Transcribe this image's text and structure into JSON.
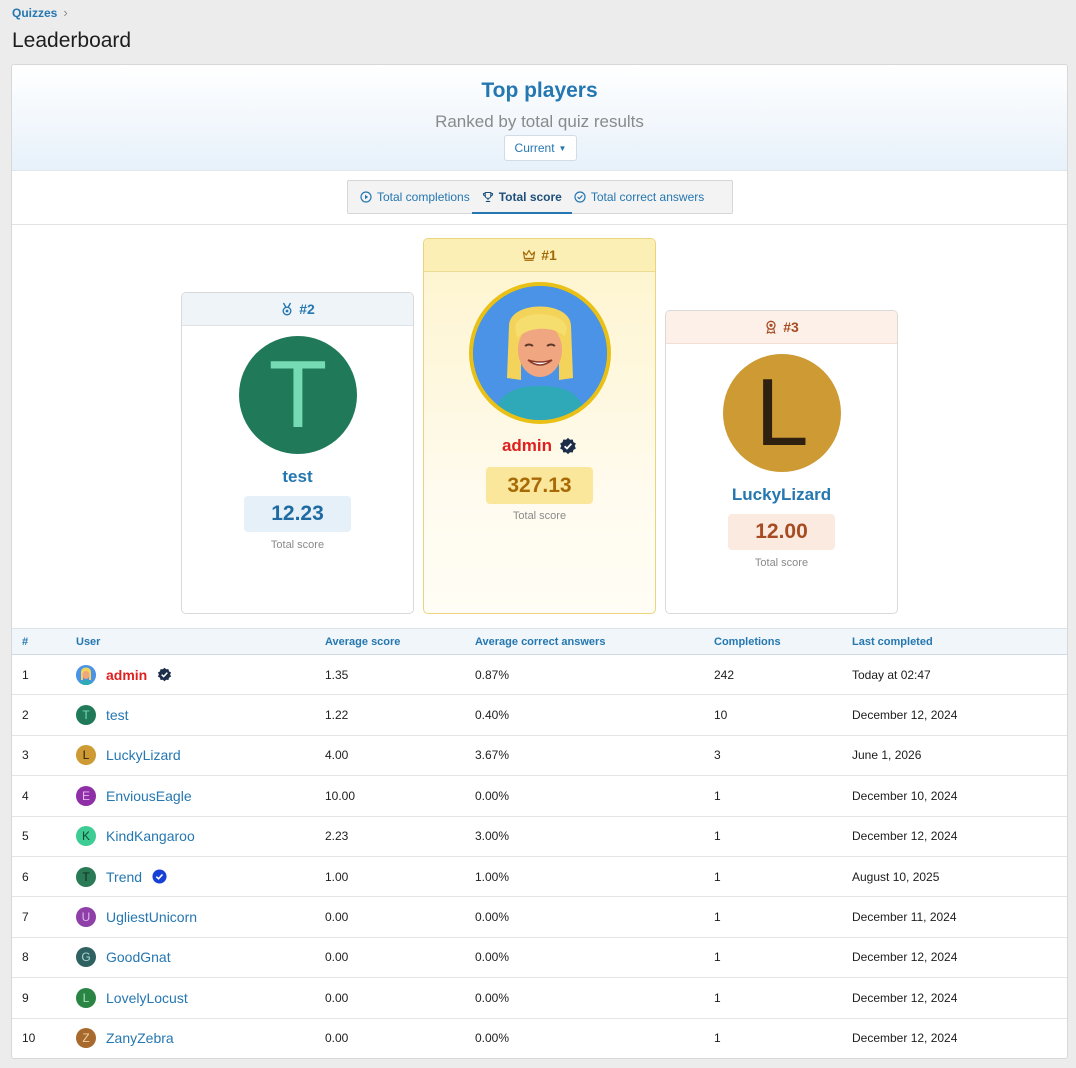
{
  "breadcrumb": {
    "label": "Quizzes"
  },
  "page": {
    "title": "Leaderboard"
  },
  "hero": {
    "title": "Top players",
    "subtitle": "Ranked by total quiz results",
    "period_label": "Current"
  },
  "tabs": [
    {
      "label": "Total completions",
      "icon": "play-circle-icon",
      "active": false
    },
    {
      "label": "Total score",
      "icon": "trophy-icon",
      "active": true
    },
    {
      "label": "Total correct answers",
      "icon": "check-circle-icon",
      "active": false
    }
  ],
  "podium": {
    "first": {
      "rank": "#1",
      "name": "admin",
      "score": "327.13",
      "score_label": "Total score",
      "icon": "crown-icon"
    },
    "second": {
      "rank": "#2",
      "name": "test",
      "letter": "T",
      "score": "12.23",
      "score_label": "Total score",
      "icon": "medal-icon"
    },
    "third": {
      "rank": "#3",
      "name": "LuckyLizard",
      "letter": "L",
      "score": "12.00",
      "score_label": "Total score",
      "icon": "award-icon"
    }
  },
  "table": {
    "headers": {
      "rank": "#",
      "user": "User",
      "avg_score": "Average score",
      "avg_correct": "Average correct answers",
      "completions": "Completions",
      "last": "Last completed"
    },
    "rows": [
      {
        "rank": "1",
        "user": "admin",
        "letter": "",
        "avg_score": "1.35",
        "avg_correct": "0.87%",
        "completions": "242",
        "last": "Today at 02:47"
      },
      {
        "rank": "2",
        "user": "test",
        "letter": "T",
        "avg_score": "1.22",
        "avg_correct": "0.40%",
        "completions": "10",
        "last": "December 12, 2024"
      },
      {
        "rank": "3",
        "user": "LuckyLizard",
        "letter": "L",
        "avg_score": "4.00",
        "avg_correct": "3.67%",
        "completions": "3",
        "last": "June 1, 2026"
      },
      {
        "rank": "4",
        "user": "EnviousEagle",
        "letter": "E",
        "avg_score": "10.00",
        "avg_correct": "0.00%",
        "completions": "1",
        "last": "December 10, 2024"
      },
      {
        "rank": "5",
        "user": "KindKangaroo",
        "letter": "K",
        "avg_score": "2.23",
        "avg_correct": "3.00%",
        "completions": "1",
        "last": "December 12, 2024"
      },
      {
        "rank": "6",
        "user": "Trend",
        "letter": "T",
        "avg_score": "1.00",
        "avg_correct": "1.00%",
        "completions": "1",
        "last": "August 10, 2025"
      },
      {
        "rank": "7",
        "user": "UgliestUnicorn",
        "letter": "U",
        "avg_score": "0.00",
        "avg_correct": "0.00%",
        "completions": "1",
        "last": "December 11, 2024"
      },
      {
        "rank": "8",
        "user": "GoodGnat",
        "letter": "G",
        "avg_score": "0.00",
        "avg_correct": "0.00%",
        "completions": "1",
        "last": "December 12, 2024"
      },
      {
        "rank": "9",
        "user": "LovelyLocust",
        "letter": "L",
        "avg_score": "0.00",
        "avg_correct": "0.00%",
        "completions": "1",
        "last": "December 12, 2024"
      },
      {
        "rank": "10",
        "user": "ZanyZebra",
        "letter": "Z",
        "avg_score": "0.00",
        "avg_correct": "0.00%",
        "completions": "1",
        "last": "December 12, 2024"
      }
    ]
  },
  "colors": {
    "accent": "#2577b1",
    "admin_name": "#e01f1f",
    "avatar_test": "#207a5a",
    "avatar_lucky": "#cd9a33",
    "avatar_envious": "#8e2fa8",
    "avatar_kind": "#3dcc94",
    "avatar_trend": "#2a7a56",
    "avatar_ugliest": "#8e3fa8",
    "avatar_goodgnat": "#2e6160",
    "avatar_lovely": "#2a8443",
    "avatar_zany": "#a86a2c"
  }
}
